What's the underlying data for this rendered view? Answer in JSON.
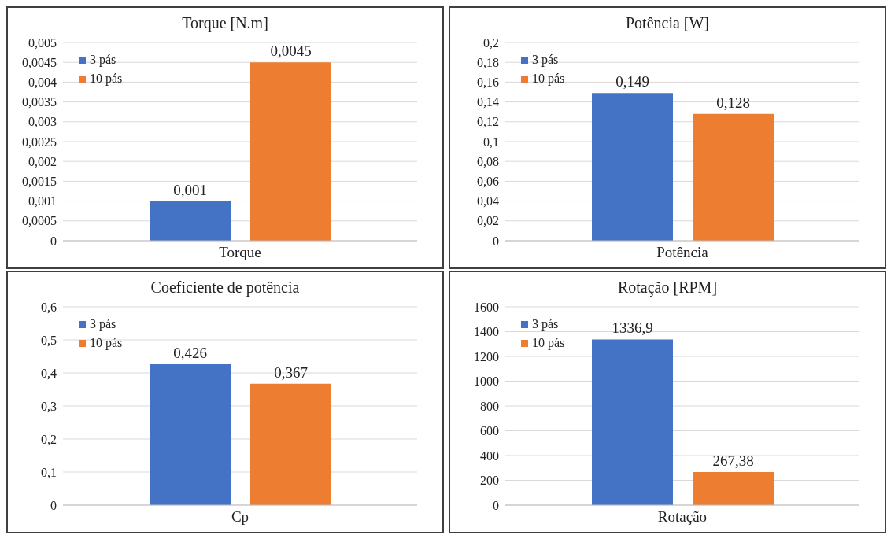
{
  "chart_data": [
    {
      "type": "bar",
      "title": "Torque [N.m]",
      "categories": [
        "Torque"
      ],
      "series": [
        {
          "name": "3 pás",
          "color": "#4472c4",
          "values": [
            0.001
          ],
          "value_labels": [
            "0,001"
          ]
        },
        {
          "name": "10 pás",
          "color": "#ed7d31",
          "values": [
            0.0045
          ],
          "value_labels": [
            "0,0045"
          ]
        }
      ],
      "ylim": [
        0,
        0.005
      ],
      "yticks": [
        0,
        {
          "value": 0.0005,
          "label": "0,0005"
        },
        {
          "value": 0.001,
          "label": "0,001"
        },
        {
          "value": 0.0015,
          "label": "0,0015"
        },
        {
          "value": 0.002,
          "label": "0,002"
        },
        {
          "value": 0.0025,
          "label": "0,0025"
        },
        {
          "value": 0.003,
          "label": "0,003"
        },
        {
          "value": 0.0035,
          "label": "0,0035"
        },
        {
          "value": 0.004,
          "label": "0,004"
        },
        {
          "value": 0.0045,
          "label": "0,0045"
        },
        {
          "value": 0.005,
          "label": "0,005"
        }
      ],
      "grid": "y",
      "legend": "top left"
    },
    {
      "type": "bar",
      "title": "Potência [W]",
      "categories": [
        "Potência"
      ],
      "series": [
        {
          "name": "3 pás",
          "color": "#4472c4",
          "values": [
            0.149
          ],
          "value_labels": [
            "0,149"
          ]
        },
        {
          "name": "10 pás",
          "color": "#ed7d31",
          "values": [
            0.128
          ],
          "value_labels": [
            "0,128"
          ]
        }
      ],
      "ylim": [
        0,
        0.2
      ],
      "yticks": [
        0,
        {
          "value": 0.02,
          "label": "0,02"
        },
        {
          "value": 0.04,
          "label": "0,04"
        },
        {
          "value": 0.06,
          "label": "0,06"
        },
        {
          "value": 0.08,
          "label": "0,08"
        },
        {
          "value": 0.1,
          "label": "0,1"
        },
        {
          "value": 0.12,
          "label": "0,12"
        },
        {
          "value": 0.14,
          "label": "0,14"
        },
        {
          "value": 0.16,
          "label": "0,16"
        },
        {
          "value": 0.18,
          "label": "0,18"
        },
        {
          "value": 0.2,
          "label": "0,2"
        }
      ],
      "grid": "y",
      "legend": "top left"
    },
    {
      "type": "bar",
      "title": "Coeficiente de potência",
      "categories": [
        "Cp"
      ],
      "series": [
        {
          "name": "3 pás",
          "color": "#4472c4",
          "values": [
            0.426
          ],
          "value_labels": [
            "0,426"
          ]
        },
        {
          "name": "10 pás",
          "color": "#ed7d31",
          "values": [
            0.367
          ],
          "value_labels": [
            "0,367"
          ]
        }
      ],
      "ylim": [
        0,
        0.6
      ],
      "yticks": [
        0,
        {
          "value": 0.1,
          "label": "0,1"
        },
        {
          "value": 0.2,
          "label": "0,2"
        },
        {
          "value": 0.3,
          "label": "0,3"
        },
        {
          "value": 0.4,
          "label": "0,4"
        },
        {
          "value": 0.5,
          "label": "0,5"
        },
        {
          "value": 0.6,
          "label": "0,6"
        }
      ],
      "grid": "y",
      "legend": "top left"
    },
    {
      "type": "bar",
      "title": "Rotação [RPM]",
      "categories": [
        "Rotação"
      ],
      "series": [
        {
          "name": "3 pás",
          "color": "#4472c4",
          "values": [
            1336.9
          ],
          "value_labels": [
            "1336,9"
          ]
        },
        {
          "name": "10 pás",
          "color": "#ed7d31",
          "values": [
            267.38
          ],
          "value_labels": [
            "267,38"
          ]
        }
      ],
      "ylim": [
        0,
        1600
      ],
      "yticks": [
        0,
        200,
        400,
        600,
        800,
        1000,
        1200,
        1400,
        1600
      ],
      "grid": "y",
      "legend": "top left"
    }
  ]
}
